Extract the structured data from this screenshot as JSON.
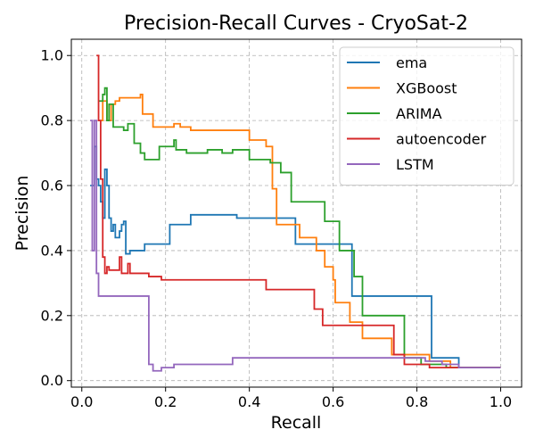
{
  "chart_data": {
    "type": "line",
    "title": "Precision-Recall Curves - CryoSat-2",
    "xlabel": "Recall",
    "ylabel": "Precision",
    "xlim": [
      -0.025,
      1.05
    ],
    "ylim": [
      -0.02,
      1.05
    ],
    "xticks": [
      0.0,
      0.2,
      0.4,
      0.6,
      0.8,
      1.0
    ],
    "xtick_labels": [
      "0.0",
      "0.2",
      "0.4",
      "0.6",
      "0.8",
      "1.0"
    ],
    "yticks": [
      0.0,
      0.2,
      0.4,
      0.6,
      0.8,
      1.0
    ],
    "ytick_labels": [
      "0.0",
      "0.2",
      "0.4",
      "0.6",
      "0.8",
      "1.0"
    ],
    "grid": true,
    "legend_position": "upper-right",
    "series": [
      {
        "name": "ema",
        "color": "#1f77b4",
        "points": [
          [
            0.02,
            0.6
          ],
          [
            0.03,
            0.6
          ],
          [
            0.03,
            0.72
          ],
          [
            0.035,
            0.72
          ],
          [
            0.035,
            0.62
          ],
          [
            0.04,
            0.62
          ],
          [
            0.04,
            0.6
          ],
          [
            0.045,
            0.6
          ],
          [
            0.045,
            0.55
          ],
          [
            0.05,
            0.55
          ],
          [
            0.05,
            0.5
          ],
          [
            0.055,
            0.5
          ],
          [
            0.055,
            0.65
          ],
          [
            0.06,
            0.65
          ],
          [
            0.06,
            0.6
          ],
          [
            0.065,
            0.6
          ],
          [
            0.065,
            0.5
          ],
          [
            0.07,
            0.5
          ],
          [
            0.07,
            0.46
          ],
          [
            0.075,
            0.46
          ],
          [
            0.075,
            0.48
          ],
          [
            0.08,
            0.48
          ],
          [
            0.08,
            0.44
          ],
          [
            0.09,
            0.44
          ],
          [
            0.09,
            0.46
          ],
          [
            0.095,
            0.46
          ],
          [
            0.095,
            0.48
          ],
          [
            0.1,
            0.48
          ],
          [
            0.1,
            0.49
          ],
          [
            0.105,
            0.49
          ],
          [
            0.105,
            0.39
          ],
          [
            0.115,
            0.39
          ],
          [
            0.115,
            0.4
          ],
          [
            0.15,
            0.4
          ],
          [
            0.15,
            0.42
          ],
          [
            0.21,
            0.42
          ],
          [
            0.21,
            0.48
          ],
          [
            0.26,
            0.48
          ],
          [
            0.26,
            0.51
          ],
          [
            0.37,
            0.51
          ],
          [
            0.37,
            0.5
          ],
          [
            0.51,
            0.5
          ],
          [
            0.51,
            0.42
          ],
          [
            0.645,
            0.42
          ],
          [
            0.645,
            0.26
          ],
          [
            0.835,
            0.26
          ],
          [
            0.835,
            0.07
          ],
          [
            0.9,
            0.07
          ],
          [
            0.9,
            0.04
          ],
          [
            1.0,
            0.04
          ]
        ]
      },
      {
        "name": "XGBoost",
        "color": "#ff7f0e",
        "points": [
          [
            0.04,
            0.8
          ],
          [
            0.05,
            0.8
          ],
          [
            0.05,
            0.86
          ],
          [
            0.06,
            0.86
          ],
          [
            0.06,
            0.8
          ],
          [
            0.07,
            0.8
          ],
          [
            0.07,
            0.85
          ],
          [
            0.08,
            0.85
          ],
          [
            0.08,
            0.86
          ],
          [
            0.09,
            0.86
          ],
          [
            0.09,
            0.87
          ],
          [
            0.14,
            0.87
          ],
          [
            0.14,
            0.88
          ],
          [
            0.145,
            0.88
          ],
          [
            0.145,
            0.82
          ],
          [
            0.17,
            0.82
          ],
          [
            0.17,
            0.78
          ],
          [
            0.22,
            0.78
          ],
          [
            0.22,
            0.79
          ],
          [
            0.235,
            0.79
          ],
          [
            0.235,
            0.78
          ],
          [
            0.26,
            0.78
          ],
          [
            0.26,
            0.77
          ],
          [
            0.4,
            0.77
          ],
          [
            0.4,
            0.74
          ],
          [
            0.44,
            0.74
          ],
          [
            0.44,
            0.72
          ],
          [
            0.455,
            0.72
          ],
          [
            0.455,
            0.59
          ],
          [
            0.465,
            0.59
          ],
          [
            0.465,
            0.48
          ],
          [
            0.52,
            0.48
          ],
          [
            0.52,
            0.44
          ],
          [
            0.56,
            0.44
          ],
          [
            0.56,
            0.4
          ],
          [
            0.58,
            0.4
          ],
          [
            0.58,
            0.35
          ],
          [
            0.6,
            0.35
          ],
          [
            0.6,
            0.31
          ],
          [
            0.605,
            0.31
          ],
          [
            0.605,
            0.24
          ],
          [
            0.64,
            0.24
          ],
          [
            0.64,
            0.18
          ],
          [
            0.67,
            0.18
          ],
          [
            0.67,
            0.13
          ],
          [
            0.74,
            0.13
          ],
          [
            0.74,
            0.08
          ],
          [
            0.83,
            0.08
          ],
          [
            0.83,
            0.06
          ],
          [
            0.88,
            0.06
          ],
          [
            0.88,
            0.04
          ],
          [
            1.0,
            0.04
          ]
        ]
      },
      {
        "name": "ARIMA",
        "color": "#2ca02c",
        "points": [
          [
            0.04,
            0.86
          ],
          [
            0.05,
            0.86
          ],
          [
            0.05,
            0.88
          ],
          [
            0.055,
            0.88
          ],
          [
            0.055,
            0.9
          ],
          [
            0.06,
            0.9
          ],
          [
            0.06,
            0.8
          ],
          [
            0.065,
            0.8
          ],
          [
            0.065,
            0.85
          ],
          [
            0.075,
            0.85
          ],
          [
            0.075,
            0.78
          ],
          [
            0.1,
            0.78
          ],
          [
            0.1,
            0.77
          ],
          [
            0.11,
            0.77
          ],
          [
            0.11,
            0.79
          ],
          [
            0.125,
            0.79
          ],
          [
            0.125,
            0.73
          ],
          [
            0.14,
            0.73
          ],
          [
            0.14,
            0.7
          ],
          [
            0.15,
            0.7
          ],
          [
            0.15,
            0.68
          ],
          [
            0.185,
            0.68
          ],
          [
            0.185,
            0.72
          ],
          [
            0.22,
            0.72
          ],
          [
            0.22,
            0.74
          ],
          [
            0.225,
            0.74
          ],
          [
            0.225,
            0.71
          ],
          [
            0.25,
            0.71
          ],
          [
            0.25,
            0.7
          ],
          [
            0.3,
            0.7
          ],
          [
            0.3,
            0.71
          ],
          [
            0.335,
            0.71
          ],
          [
            0.335,
            0.7
          ],
          [
            0.36,
            0.7
          ],
          [
            0.36,
            0.71
          ],
          [
            0.4,
            0.71
          ],
          [
            0.4,
            0.68
          ],
          [
            0.45,
            0.68
          ],
          [
            0.45,
            0.67
          ],
          [
            0.475,
            0.67
          ],
          [
            0.475,
            0.64
          ],
          [
            0.5,
            0.64
          ],
          [
            0.5,
            0.55
          ],
          [
            0.58,
            0.55
          ],
          [
            0.58,
            0.49
          ],
          [
            0.615,
            0.49
          ],
          [
            0.615,
            0.4
          ],
          [
            0.65,
            0.4
          ],
          [
            0.65,
            0.32
          ],
          [
            0.67,
            0.32
          ],
          [
            0.67,
            0.2
          ],
          [
            0.77,
            0.2
          ],
          [
            0.77,
            0.07
          ],
          [
            0.81,
            0.07
          ],
          [
            0.81,
            0.05
          ],
          [
            0.87,
            0.05
          ],
          [
            0.87,
            0.04
          ],
          [
            1.0,
            0.04
          ]
        ]
      },
      {
        "name": "autoencoder",
        "color": "#d62728",
        "points": [
          [
            0.035,
            1.0
          ],
          [
            0.04,
            1.0
          ],
          [
            0.04,
            0.8
          ],
          [
            0.045,
            0.8
          ],
          [
            0.045,
            0.62
          ],
          [
            0.05,
            0.62
          ],
          [
            0.05,
            0.38
          ],
          [
            0.055,
            0.38
          ],
          [
            0.055,
            0.33
          ],
          [
            0.06,
            0.33
          ],
          [
            0.06,
            0.35
          ],
          [
            0.065,
            0.35
          ],
          [
            0.065,
            0.34
          ],
          [
            0.09,
            0.34
          ],
          [
            0.09,
            0.38
          ],
          [
            0.095,
            0.38
          ],
          [
            0.095,
            0.33
          ],
          [
            0.11,
            0.33
          ],
          [
            0.11,
            0.36
          ],
          [
            0.115,
            0.36
          ],
          [
            0.115,
            0.33
          ],
          [
            0.16,
            0.33
          ],
          [
            0.16,
            0.32
          ],
          [
            0.19,
            0.32
          ],
          [
            0.19,
            0.31
          ],
          [
            0.28,
            0.31
          ],
          [
            0.28,
            0.31
          ],
          [
            0.44,
            0.31
          ],
          [
            0.44,
            0.28
          ],
          [
            0.555,
            0.28
          ],
          [
            0.555,
            0.22
          ],
          [
            0.575,
            0.22
          ],
          [
            0.575,
            0.17
          ],
          [
            0.745,
            0.17
          ],
          [
            0.745,
            0.08
          ],
          [
            0.77,
            0.08
          ],
          [
            0.77,
            0.05
          ],
          [
            0.83,
            0.05
          ],
          [
            0.83,
            0.04
          ],
          [
            0.88,
            0.04
          ],
          [
            0.88,
            0.04
          ],
          [
            1.0,
            0.04
          ]
        ]
      },
      {
        "name": "LSTM",
        "color": "#9467bd",
        "points": [
          [
            0.02,
            0.8
          ],
          [
            0.025,
            0.8
          ],
          [
            0.025,
            0.4
          ],
          [
            0.03,
            0.4
          ],
          [
            0.03,
            0.8
          ],
          [
            0.035,
            0.8
          ],
          [
            0.035,
            0.33
          ],
          [
            0.04,
            0.33
          ],
          [
            0.04,
            0.26
          ],
          [
            0.16,
            0.26
          ],
          [
            0.16,
            0.05
          ],
          [
            0.17,
            0.05
          ],
          [
            0.17,
            0.03
          ],
          [
            0.19,
            0.03
          ],
          [
            0.19,
            0.04
          ],
          [
            0.22,
            0.04
          ],
          [
            0.22,
            0.05
          ],
          [
            0.36,
            0.05
          ],
          [
            0.36,
            0.07
          ],
          [
            0.82,
            0.07
          ],
          [
            0.82,
            0.06
          ],
          [
            0.86,
            0.06
          ],
          [
            0.86,
            0.05
          ],
          [
            0.9,
            0.05
          ],
          [
            0.9,
            0.04
          ],
          [
            1.0,
            0.04
          ]
        ]
      }
    ]
  }
}
